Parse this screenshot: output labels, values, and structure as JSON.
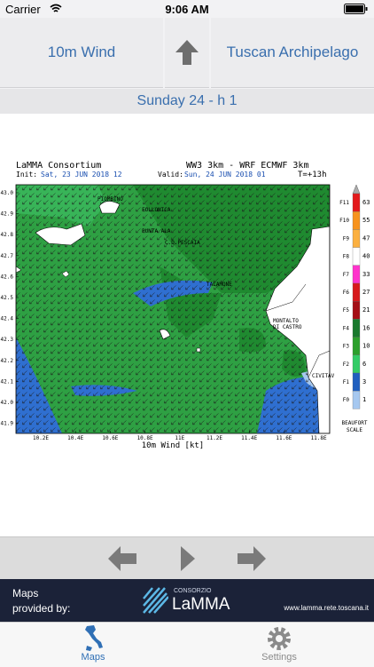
{
  "status": {
    "carrier": "Carrier",
    "time": "9:06 AM"
  },
  "header": {
    "left": "10m Wind",
    "right": "Tuscan Archipelago"
  },
  "date": "Sunday 24 - h 1",
  "map": {
    "org": "LaMMA Consortium",
    "model": "WW3 3km - WRF ECMWF 3km",
    "init_label": "Init:",
    "init": "Sat, 23 JUN 2018   12",
    "valid_label": "Valid:",
    "valid": "Sun, 24 JUN 2018   01",
    "offset": "T=+13h",
    "lat": [
      "43.0",
      "42.9",
      "42.8",
      "42.7",
      "42.6",
      "42.5",
      "42.4",
      "42.3",
      "42.2",
      "42.1",
      "42.0",
      "41.9"
    ],
    "lon": [
      "10.2E",
      "10.4E",
      "10.6E",
      "10.8E",
      "11E",
      "11.2E",
      "11.4E",
      "11.6E",
      "11.8E"
    ],
    "axis": "10m Wind [kt]",
    "places": [
      "PIOMBINO",
      "FOLLONICA",
      "PUNTA ALA",
      "C.D.PESCAIA",
      "TALAMONE",
      "MONTALTO",
      "DI CASTRO",
      "CIVITAV"
    ],
    "beaufort": [
      "F11",
      "F10",
      "F9",
      "F8",
      "F7",
      "F6",
      "F5",
      "F4",
      "F3",
      "F2",
      "F1",
      "F0"
    ],
    "knots": [
      "63",
      "55",
      "47",
      "40",
      "33",
      "27",
      "21",
      "16",
      "10",
      "6",
      "3",
      "1"
    ],
    "scale": [
      "BEAUFORT",
      "SCALE"
    ]
  },
  "footer": {
    "line1": "Maps",
    "line2": "provided  by:",
    "consortium": "CONSORZIO",
    "lamma": "LaMMA",
    "url": "www.lamma.rete.toscana.it"
  },
  "tabs": [
    "Maps",
    "Settings"
  ]
}
